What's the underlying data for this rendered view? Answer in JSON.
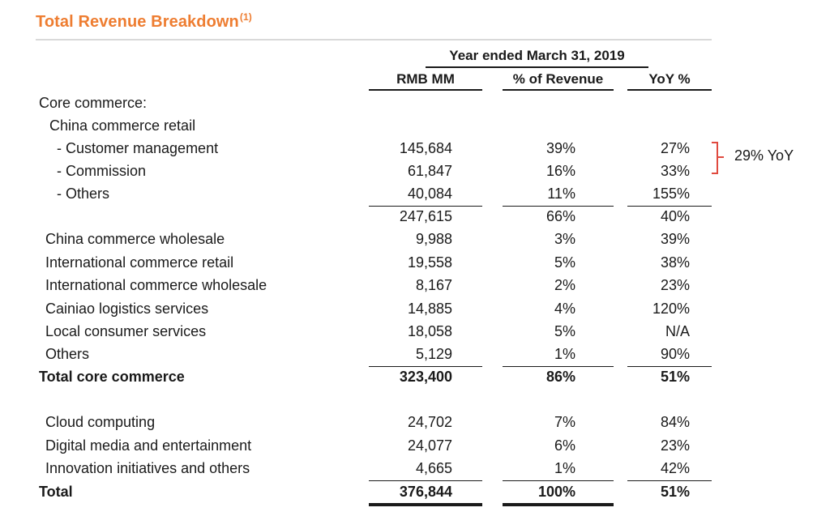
{
  "title": {
    "text": "Total Revenue Breakdown",
    "footnote": "(1)"
  },
  "header": {
    "period": "Year ended March 31, 2019",
    "columns": [
      "RMB MM",
      "% of Revenue",
      "YoY %"
    ]
  },
  "rows": [
    {
      "label": "Core commerce:",
      "rmb": "",
      "pct": "",
      "yoy": ""
    },
    {
      "label": "China commerce retail",
      "rmb": "",
      "pct": "",
      "yoy": ""
    },
    {
      "label": "- Customer management",
      "rmb": "145,684",
      "pct": "39%",
      "yoy": "27%"
    },
    {
      "label": "- Commission",
      "rmb": "61,847",
      "pct": "16%",
      "yoy": "33%"
    },
    {
      "label": "- Others",
      "rmb": "40,084",
      "pct": "11%",
      "yoy": "155%"
    },
    {
      "label": "",
      "rmb": "247,615",
      "pct": "66%",
      "yoy": "40%"
    },
    {
      "label": "China commerce wholesale",
      "rmb": "9,988",
      "pct": "3%",
      "yoy": "39%"
    },
    {
      "label": "International commerce retail",
      "rmb": "19,558",
      "pct": "5%",
      "yoy": "38%"
    },
    {
      "label": "International commerce wholesale",
      "rmb": "8,167",
      "pct": "2%",
      "yoy": "23%"
    },
    {
      "label": "Cainiao logistics services",
      "rmb": "14,885",
      "pct": "4%",
      "yoy": "120%"
    },
    {
      "label": "Local consumer services",
      "rmb": "18,058",
      "pct": "5%",
      "yoy": "N/A"
    },
    {
      "label": "Others",
      "rmb": "5,129",
      "pct": "1%",
      "yoy": "90%"
    },
    {
      "label": "Total core commerce",
      "rmb": "323,400",
      "pct": "86%",
      "yoy": "51%"
    },
    {
      "label": "Cloud computing",
      "rmb": "24,702",
      "pct": "7%",
      "yoy": "84%"
    },
    {
      "label": "Digital media and entertainment",
      "rmb": "24,077",
      "pct": "6%",
      "yoy": "23%"
    },
    {
      "label": "Innovation initiatives and others",
      "rmb": "4,665",
      "pct": "1%",
      "yoy": "42%"
    },
    {
      "label": "Total",
      "rmb": "376,844",
      "pct": "100%",
      "yoy": "51%"
    }
  ],
  "annotation": {
    "text": "29% YoY",
    "color": "#e04a3f"
  },
  "colors": {
    "title": "#ee7d31",
    "text": "#1a1a1a",
    "title_rule": "#d9d9d9"
  }
}
